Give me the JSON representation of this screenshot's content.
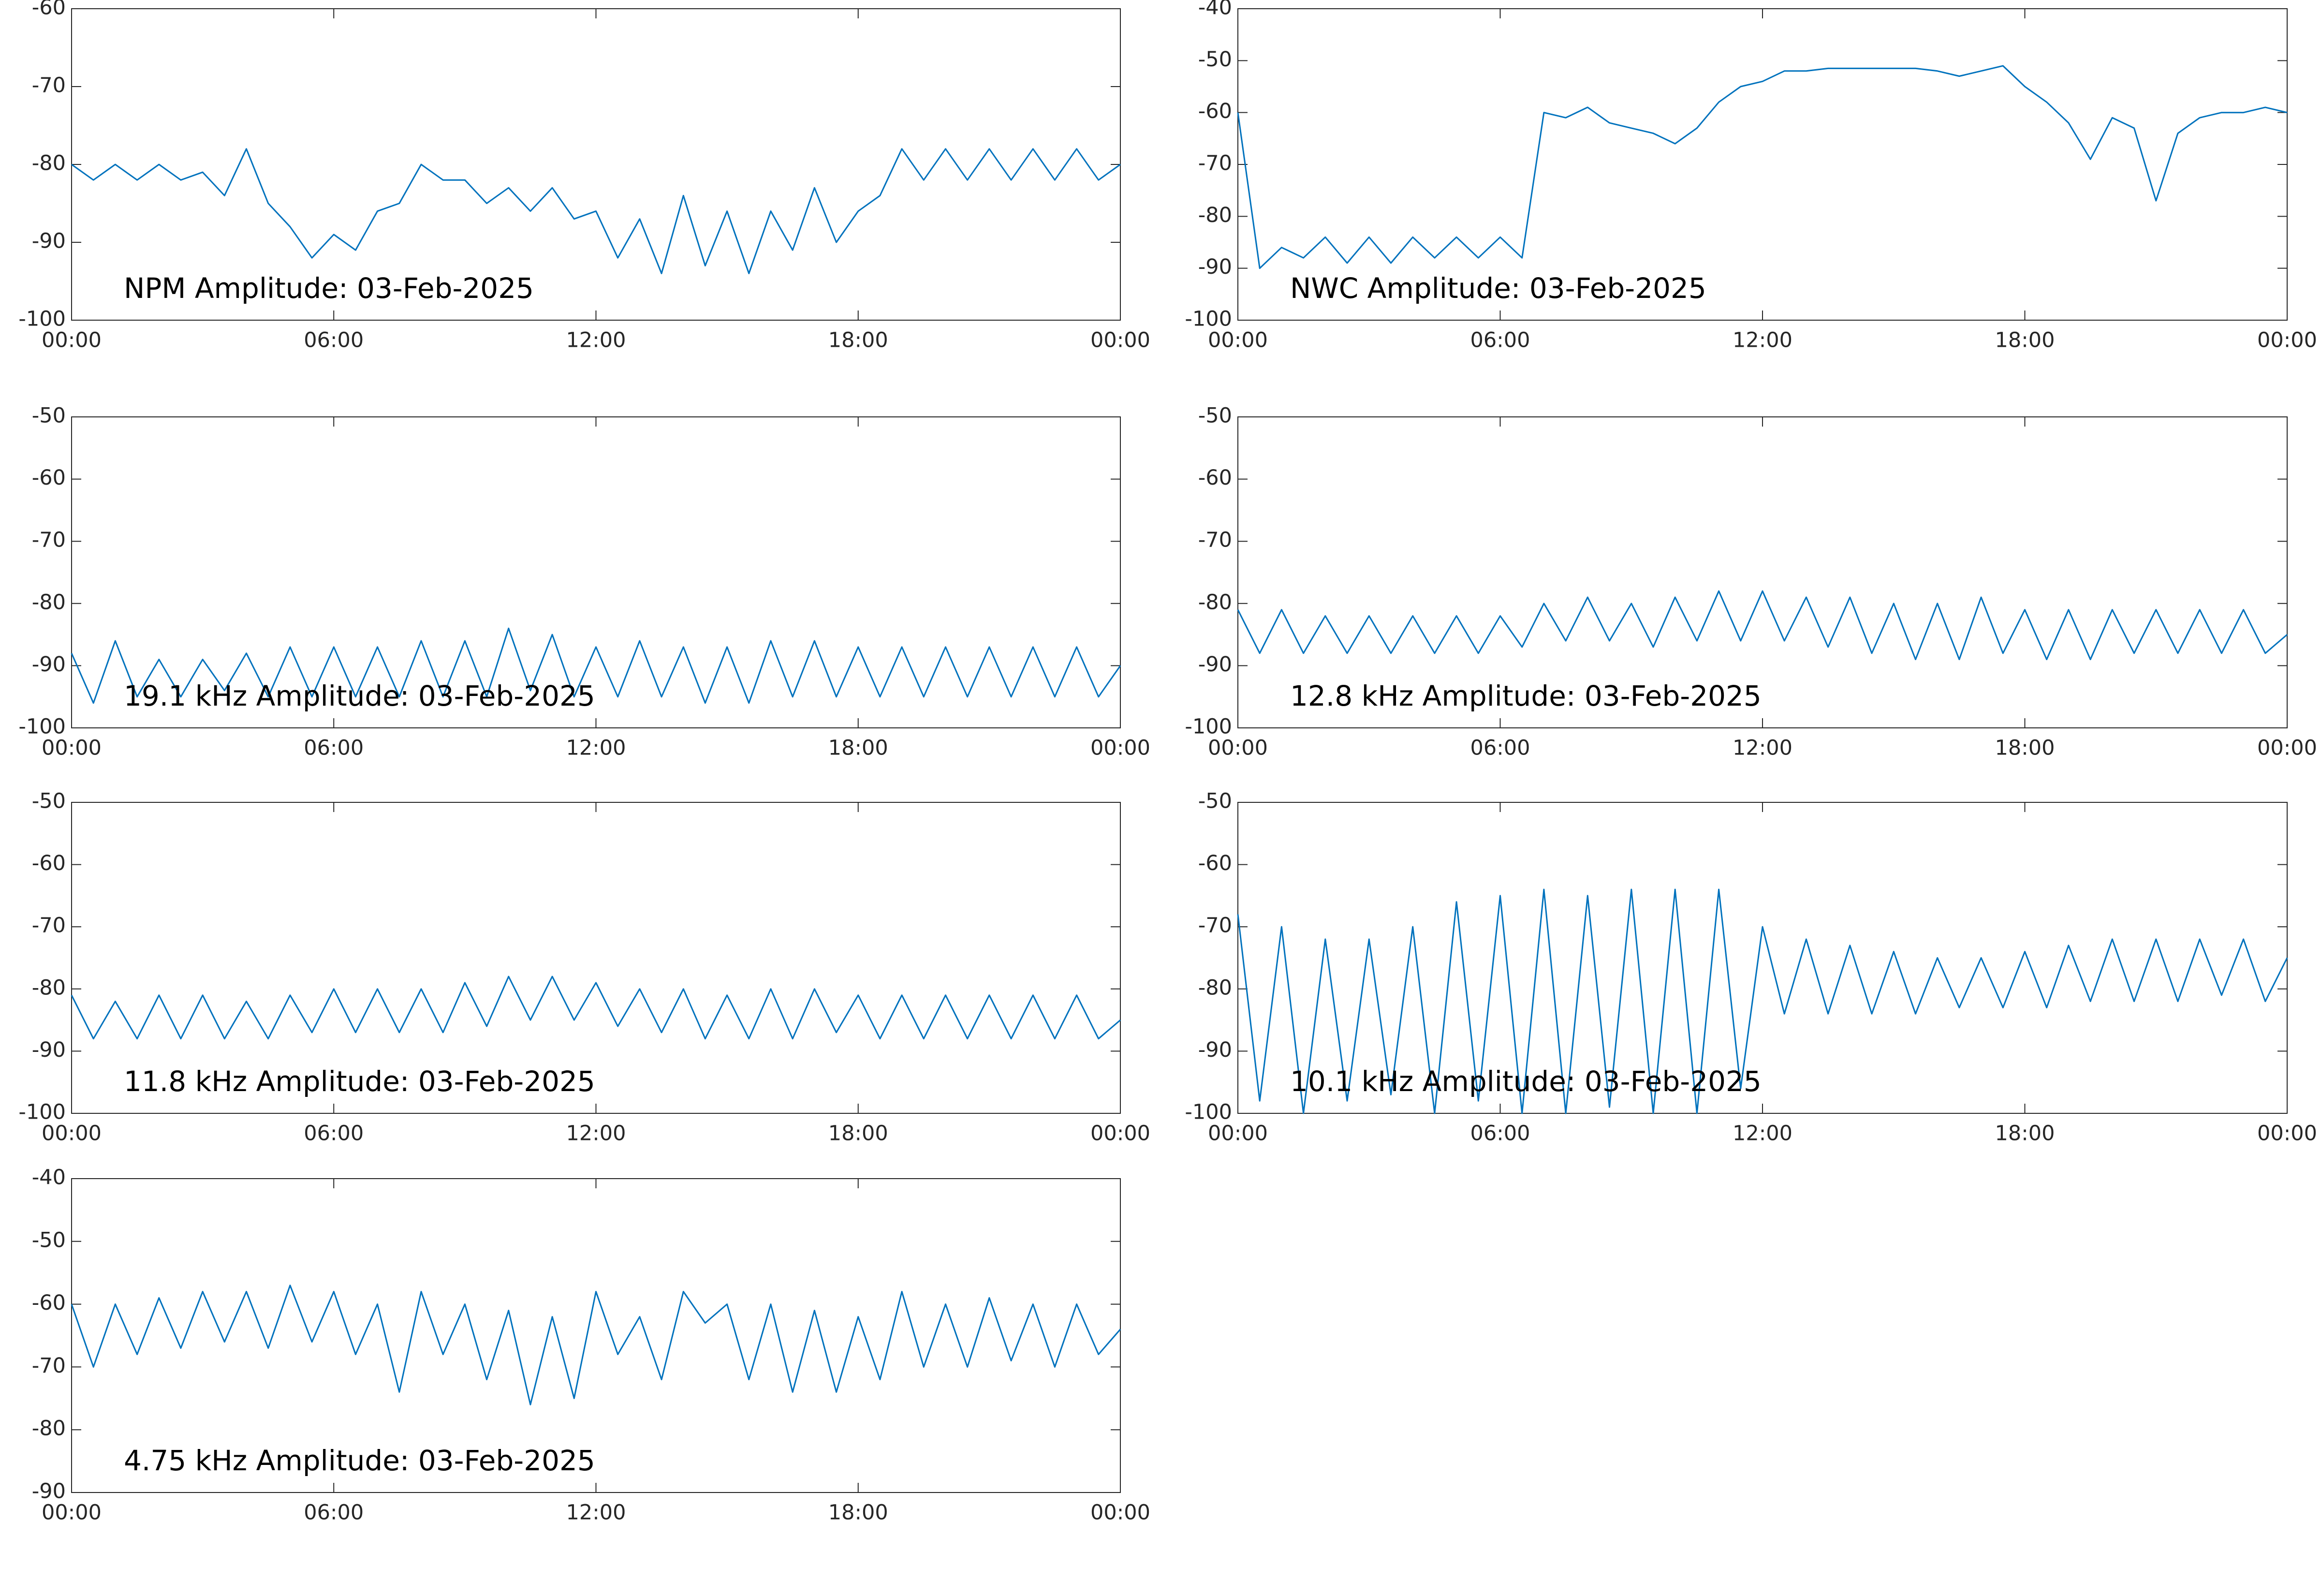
{
  "chart_data": [
    {
      "type": "line",
      "title": "NPM Amplitude: 03-Feb-2025",
      "x": [
        0,
        0.5,
        1,
        1.5,
        2,
        2.5,
        3,
        3.5,
        4,
        4.5,
        5,
        5.5,
        6,
        6.5,
        7,
        7.5,
        8,
        8.5,
        9,
        9.5,
        10,
        10.5,
        11,
        11.5,
        12,
        12.5,
        13,
        13.5,
        14,
        14.5,
        15,
        15.5,
        16,
        16.5,
        17,
        17.5,
        18,
        18.5,
        19,
        19.5,
        20,
        20.5,
        21,
        21.5,
        22,
        22.5,
        23,
        23.5,
        24
      ],
      "series": [
        {
          "color": "#0072bd",
          "values": [
            -80,
            -82,
            -80,
            -82,
            -80,
            -82,
            -81,
            -84,
            -78,
            -85,
            -88,
            -92,
            -89,
            -91,
            -86,
            -85,
            -80,
            -82,
            -82,
            -85,
            -83,
            -86,
            -83,
            -87,
            -86,
            -92,
            -87,
            -94,
            -84,
            -93,
            -86,
            -94,
            -86,
            -91,
            -83,
            -90,
            -86,
            -84,
            -78,
            -82,
            -78,
            -82,
            -78,
            -82,
            -78,
            -82,
            -78,
            -82,
            -80
          ]
        }
      ],
      "xlim": [
        0,
        24
      ],
      "xticks": [
        {
          "value": 0,
          "label": "00:00"
        },
        {
          "value": 6,
          "label": "06:00"
        },
        {
          "value": 12,
          "label": "12:00"
        },
        {
          "value": 18,
          "label": "18:00"
        },
        {
          "value": 24,
          "label": "00:00"
        }
      ],
      "ylim": [
        -100,
        -60
      ],
      "yticks": [
        -100,
        -90,
        -80,
        -70,
        -60
      ]
    },
    {
      "type": "line",
      "title": "NWC Amplitude: 03-Feb-2025",
      "x": [
        0,
        0.5,
        1,
        1.5,
        2,
        2.5,
        3,
        3.5,
        4,
        4.5,
        5,
        5.5,
        6,
        6.5,
        7,
        7.5,
        8,
        8.5,
        9,
        9.5,
        10,
        10.5,
        11,
        11.5,
        12,
        12.5,
        13,
        13.5,
        14,
        14.5,
        15,
        15.5,
        16,
        16.5,
        17,
        17.5,
        18,
        18.5,
        19,
        19.5,
        20,
        20.5,
        21,
        21.5,
        22,
        22.5,
        23,
        23.5,
        24
      ],
      "series": [
        {
          "color": "#0072bd",
          "values": [
            -60,
            -90,
            -86,
            -88,
            -84,
            -89,
            -84,
            -89,
            -84,
            -88,
            -84,
            -88,
            -84,
            -88,
            -60,
            -61,
            -59,
            -62,
            -63,
            -64,
            -66,
            -63,
            -58,
            -55,
            -54,
            -52,
            -52,
            -51.5,
            -51.5,
            -51.5,
            -51.5,
            -51.5,
            -52,
            -53,
            -52,
            -51,
            -55,
            -58,
            -62,
            -69,
            -61,
            -63,
            -77,
            -64,
            -61,
            -60,
            -60,
            -59,
            -60
          ]
        }
      ],
      "xlim": [
        0,
        24
      ],
      "xticks": [
        {
          "value": 0,
          "label": "00:00"
        },
        {
          "value": 6,
          "label": "06:00"
        },
        {
          "value": 12,
          "label": "12:00"
        },
        {
          "value": 18,
          "label": "18:00"
        },
        {
          "value": 24,
          "label": "00:00"
        }
      ],
      "ylim": [
        -100,
        -40
      ],
      "yticks": [
        -100,
        -90,
        -80,
        -70,
        -60,
        -50,
        -40
      ]
    },
    {
      "type": "line",
      "title": "19.1 kHz Amplitude: 03-Feb-2025",
      "x": [
        0,
        0.5,
        1,
        1.5,
        2,
        2.5,
        3,
        3.5,
        4,
        4.5,
        5,
        5.5,
        6,
        6.5,
        7,
        7.5,
        8,
        8.5,
        9,
        9.5,
        10,
        10.5,
        11,
        11.5,
        12,
        12.5,
        13,
        13.5,
        14,
        14.5,
        15,
        15.5,
        16,
        16.5,
        17,
        17.5,
        18,
        18.5,
        19,
        19.5,
        20,
        20.5,
        21,
        21.5,
        22,
        22.5,
        23,
        23.5,
        24
      ],
      "series": [
        {
          "color": "#0072bd",
          "values": [
            -88,
            -96,
            -86,
            -95,
            -89,
            -95,
            -89,
            -94,
            -88,
            -95,
            -87,
            -95,
            -87,
            -95,
            -87,
            -95,
            -86,
            -95,
            -86,
            -95,
            -84,
            -94,
            -85,
            -95,
            -87,
            -95,
            -86,
            -95,
            -87,
            -96,
            -87,
            -96,
            -86,
            -95,
            -86,
            -95,
            -87,
            -95,
            -87,
            -95,
            -87,
            -95,
            -87,
            -95,
            -87,
            -95,
            -87,
            -95,
            -90
          ]
        }
      ],
      "xlim": [
        0,
        24
      ],
      "xticks": [
        {
          "value": 0,
          "label": "00:00"
        },
        {
          "value": 6,
          "label": "06:00"
        },
        {
          "value": 12,
          "label": "12:00"
        },
        {
          "value": 18,
          "label": "18:00"
        },
        {
          "value": 24,
          "label": "00:00"
        }
      ],
      "ylim": [
        -100,
        -50
      ],
      "yticks": [
        -100,
        -90,
        -80,
        -70,
        -60,
        -50
      ]
    },
    {
      "type": "line",
      "title": "12.8 kHz Amplitude: 03-Feb-2025",
      "x": [
        0,
        0.5,
        1,
        1.5,
        2,
        2.5,
        3,
        3.5,
        4,
        4.5,
        5,
        5.5,
        6,
        6.5,
        7,
        7.5,
        8,
        8.5,
        9,
        9.5,
        10,
        10.5,
        11,
        11.5,
        12,
        12.5,
        13,
        13.5,
        14,
        14.5,
        15,
        15.5,
        16,
        16.5,
        17,
        17.5,
        18,
        18.5,
        19,
        19.5,
        20,
        20.5,
        21,
        21.5,
        22,
        22.5,
        23,
        23.5,
        24
      ],
      "series": [
        {
          "color": "#0072bd",
          "values": [
            -81,
            -88,
            -81,
            -88,
            -82,
            -88,
            -82,
            -88,
            -82,
            -88,
            -82,
            -88,
            -82,
            -87,
            -80,
            -86,
            -79,
            -86,
            -80,
            -87,
            -79,
            -86,
            -78,
            -86,
            -78,
            -86,
            -79,
            -87,
            -79,
            -88,
            -80,
            -89,
            -80,
            -89,
            -79,
            -88,
            -81,
            -89,
            -81,
            -89,
            -81,
            -88,
            -81,
            -88,
            -81,
            -88,
            -81,
            -88,
            -85
          ]
        }
      ],
      "xlim": [
        0,
        24
      ],
      "xticks": [
        {
          "value": 0,
          "label": "00:00"
        },
        {
          "value": 6,
          "label": "06:00"
        },
        {
          "value": 12,
          "label": "12:00"
        },
        {
          "value": 18,
          "label": "18:00"
        },
        {
          "value": 24,
          "label": "00:00"
        }
      ],
      "ylim": [
        -100,
        -50
      ],
      "yticks": [
        -100,
        -90,
        -80,
        -70,
        -60,
        -50
      ]
    },
    {
      "type": "line",
      "title": "11.8 kHz Amplitude: 03-Feb-2025",
      "x": [
        0,
        0.5,
        1,
        1.5,
        2,
        2.5,
        3,
        3.5,
        4,
        4.5,
        5,
        5.5,
        6,
        6.5,
        7,
        7.5,
        8,
        8.5,
        9,
        9.5,
        10,
        10.5,
        11,
        11.5,
        12,
        12.5,
        13,
        13.5,
        14,
        14.5,
        15,
        15.5,
        16,
        16.5,
        17,
        17.5,
        18,
        18.5,
        19,
        19.5,
        20,
        20.5,
        21,
        21.5,
        22,
        22.5,
        23,
        23.5,
        24
      ],
      "series": [
        {
          "color": "#0072bd",
          "values": [
            -81,
            -88,
            -82,
            -88,
            -81,
            -88,
            -81,
            -88,
            -82,
            -88,
            -81,
            -87,
            -80,
            -87,
            -80,
            -87,
            -80,
            -87,
            -79,
            -86,
            -78,
            -85,
            -78,
            -85,
            -79,
            -86,
            -80,
            -87,
            -80,
            -88,
            -81,
            -88,
            -80,
            -88,
            -80,
            -87,
            -81,
            -88,
            -81,
            -88,
            -81,
            -88,
            -81,
            -88,
            -81,
            -88,
            -81,
            -88,
            -85
          ]
        }
      ],
      "xlim": [
        0,
        24
      ],
      "xticks": [
        {
          "value": 0,
          "label": "00:00"
        },
        {
          "value": 6,
          "label": "06:00"
        },
        {
          "value": 12,
          "label": "12:00"
        },
        {
          "value": 18,
          "label": "18:00"
        },
        {
          "value": 24,
          "label": "00:00"
        }
      ],
      "ylim": [
        -100,
        -50
      ],
      "yticks": [
        -100,
        -90,
        -80,
        -70,
        -60,
        -50
      ]
    },
    {
      "type": "line",
      "title": "10.1 kHz Amplitude: 03-Feb-2025",
      "x": [
        0,
        0.5,
        1,
        1.5,
        2,
        2.5,
        3,
        3.5,
        4,
        4.5,
        5,
        5.5,
        6,
        6.5,
        7,
        7.5,
        8,
        8.5,
        9,
        9.5,
        10,
        10.5,
        11,
        11.5,
        12,
        12.5,
        13,
        13.5,
        14,
        14.5,
        15,
        15.5,
        16,
        16.5,
        17,
        17.5,
        18,
        18.5,
        19,
        19.5,
        20,
        20.5,
        21,
        21.5,
        22,
        22.5,
        23,
        23.5,
        24
      ],
      "series": [
        {
          "color": "#0072bd",
          "values": [
            -68,
            -98,
            -70,
            -100,
            -72,
            -98,
            -72,
            -97,
            -70,
            -100,
            -66,
            -98,
            -65,
            -100,
            -64,
            -100,
            -65,
            -99,
            -64,
            -100,
            -64,
            -100,
            -64,
            -96,
            -70,
            -84,
            -72,
            -84,
            -73,
            -84,
            -74,
            -84,
            -75,
            -83,
            -75,
            -83,
            -74,
            -83,
            -73,
            -82,
            -72,
            -82,
            -72,
            -82,
            -72,
            -81,
            -72,
            -82,
            -75
          ]
        }
      ],
      "xlim": [
        0,
        24
      ],
      "xticks": [
        {
          "value": 0,
          "label": "00:00"
        },
        {
          "value": 6,
          "label": "06:00"
        },
        {
          "value": 12,
          "label": "12:00"
        },
        {
          "value": 18,
          "label": "18:00"
        },
        {
          "value": 24,
          "label": "00:00"
        }
      ],
      "ylim": [
        -100,
        -50
      ],
      "yticks": [
        -100,
        -90,
        -80,
        -70,
        -60,
        -50
      ]
    },
    {
      "type": "line",
      "title": "4.75 kHz Amplitude: 03-Feb-2025",
      "x": [
        0,
        0.5,
        1,
        1.5,
        2,
        2.5,
        3,
        3.5,
        4,
        4.5,
        5,
        5.5,
        6,
        6.5,
        7,
        7.5,
        8,
        8.5,
        9,
        9.5,
        10,
        10.5,
        11,
        11.5,
        12,
        12.5,
        13,
        13.5,
        14,
        14.5,
        15,
        15.5,
        16,
        16.5,
        17,
        17.5,
        18,
        18.5,
        19,
        19.5,
        20,
        20.5,
        21,
        21.5,
        22,
        22.5,
        23,
        23.5,
        24
      ],
      "series": [
        {
          "color": "#0072bd",
          "values": [
            -60,
            -70,
            -60,
            -68,
            -59,
            -67,
            -58,
            -66,
            -58,
            -67,
            -57,
            -66,
            -58,
            -68,
            -60,
            -74,
            -58,
            -68,
            -60,
            -72,
            -61,
            -76,
            -62,
            -75,
            -58,
            -68,
            -62,
            -72,
            -58,
            -63,
            -60,
            -72,
            -60,
            -74,
            -61,
            -74,
            -62,
            -72,
            -58,
            -70,
            -60,
            -70,
            -59,
            -69,
            -60,
            -70,
            -60,
            -68,
            -64
          ]
        }
      ],
      "xlim": [
        0,
        24
      ],
      "xticks": [
        {
          "value": 0,
          "label": "00:00"
        },
        {
          "value": 6,
          "label": "06:00"
        },
        {
          "value": 12,
          "label": "12:00"
        },
        {
          "value": 18,
          "label": "18:00"
        },
        {
          "value": 24,
          "label": "00:00"
        }
      ],
      "ylim": [
        -90,
        -40
      ],
      "yticks": [
        -90,
        -80,
        -70,
        -60,
        -50,
        -40
      ]
    }
  ]
}
